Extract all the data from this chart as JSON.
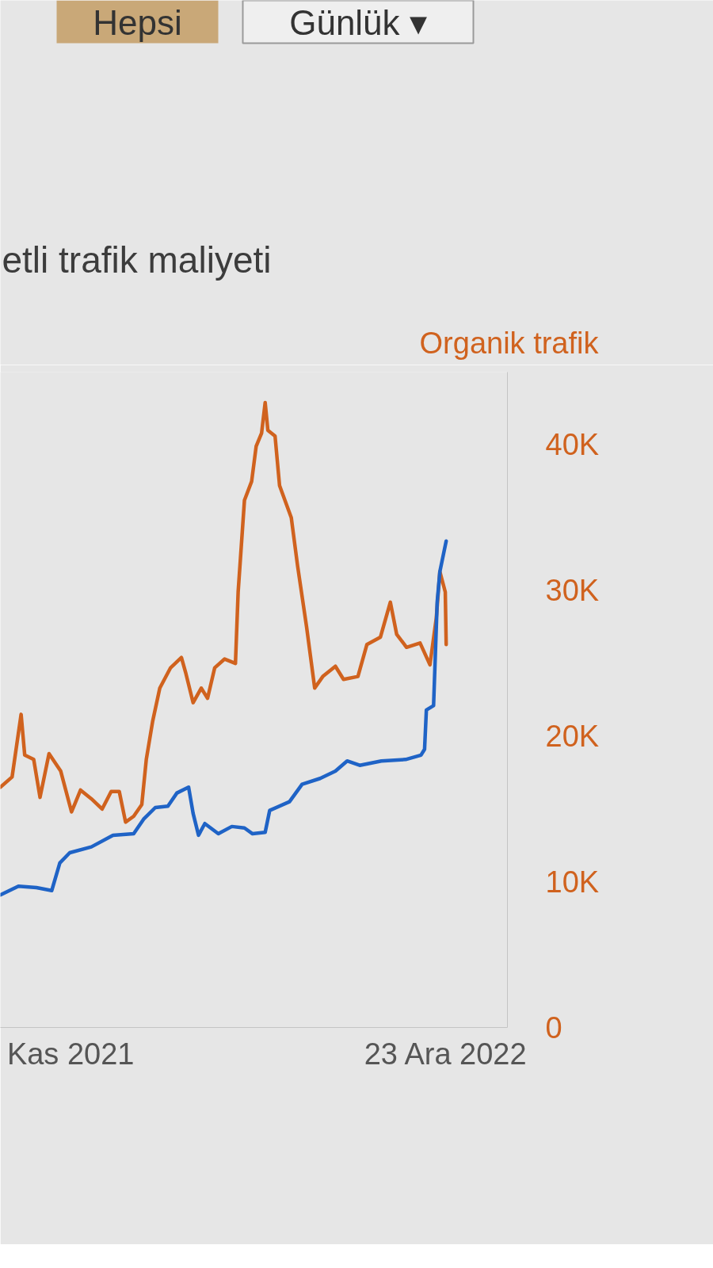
{
  "chart_data": {
    "type": "line",
    "title": "etli trafik maliyeti",
    "ylabel": "Organik trafik",
    "annotations": [
      "Hepsi",
      "Günlük ▾"
    ],
    "xlim": [
      "2021-08-15",
      "2023-03-01"
    ],
    "xticks": [
      {
        "value": "2021-11",
        "label": "Kas 2021"
      },
      {
        "value": "2022-12-23",
        "label": "23 Ara 2022"
      }
    ],
    "ylim": [
      0,
      45000
    ],
    "yticks": [
      0,
      {
        "value": 10000,
        "label": "10K"
      },
      {
        "value": 20000,
        "label": "20K"
      },
      {
        "value": 30000,
        "label": "30K"
      },
      {
        "value": 40000,
        "label": "40K"
      }
    ],
    "grid": false,
    "line_style": "solid",
    "series": [
      {
        "color": "#d0621e",
        "x": [
          "2021-08-15",
          "2021-08-28",
          "2021-09-07",
          "2021-09-11",
          "2021-09-21",
          "2021-09-28",
          "2021-10-08",
          "2021-10-21",
          "2021-11-02",
          "2021-11-12",
          "2021-11-24",
          "2021-12-06",
          "2021-12-16",
          "2021-12-25",
          "2022-01-01",
          "2022-01-10",
          "2022-01-19",
          "2022-01-24",
          "2022-01-31",
          "2022-02-08",
          "2022-02-20",
          "2022-03-04",
          "2022-03-09",
          "2022-03-17",
          "2022-03-26",
          "2022-04-02",
          "2022-04-10",
          "2022-04-21",
          "2022-05-03",
          "2022-05-06",
          "2022-05-13",
          "2022-05-21",
          "2022-05-26",
          "2022-06-01",
          "2022-06-05",
          "2022-06-08",
          "2022-06-16",
          "2022-06-21",
          "2022-07-04",
          "2022-07-11",
          "2022-07-21",
          "2022-07-30",
          "2022-08-08",
          "2022-08-22",
          "2022-08-31",
          "2022-09-16",
          "2022-09-26",
          "2022-10-11",
          "2022-10-22",
          "2022-10-29",
          "2022-11-09",
          "2022-11-24",
          "2022-12-05",
          "2022-12-12",
          "2022-12-16",
          "2022-12-22",
          "2022-12-23"
        ],
        "values": [
          16500,
          17200,
          21500,
          18700,
          18400,
          15800,
          18800,
          17600,
          14800,
          16300,
          15700,
          15000,
          16200,
          16200,
          14100,
          14500,
          15300,
          18400,
          21000,
          23300,
          24700,
          25400,
          24300,
          22300,
          23300,
          22600,
          24700,
          25300,
          25000,
          29900,
          36200,
          37500,
          39900,
          40800,
          42900,
          41000,
          40600,
          37200,
          35000,
          31700,
          27500,
          23300,
          24100,
          24800,
          23900,
          24100,
          26300,
          26800,
          29200,
          27000,
          26100,
          26400,
          24900,
          28100,
          31300,
          29900,
          26300
        ]
      },
      {
        "color": "#1f63c6",
        "x": [
          "2021-08-15",
          "2021-09-04",
          "2021-09-24",
          "2021-10-11",
          "2021-10-20",
          "2021-10-31",
          "2021-11-24",
          "2021-12-18",
          "2022-01-10",
          "2022-01-21",
          "2022-02-03",
          "2022-02-17",
          "2022-02-27",
          "2022-03-12",
          "2022-03-17",
          "2022-03-23",
          "2022-03-30",
          "2022-04-14",
          "2022-04-29",
          "2022-05-13",
          "2022-05-22",
          "2022-06-05",
          "2022-06-10",
          "2022-07-02",
          "2022-07-16",
          "2022-08-05",
          "2022-08-22",
          "2022-09-04",
          "2022-09-18",
          "2022-10-12",
          "2022-11-08",
          "2022-11-25",
          "2022-11-29",
          "2022-12-01",
          "2022-12-09",
          "2022-12-13",
          "2022-12-16",
          "2022-12-23"
        ],
        "values": [
          9100,
          9700,
          9600,
          9400,
          11300,
          12000,
          12400,
          13200,
          13300,
          14300,
          15100,
          15200,
          16100,
          16500,
          14700,
          13200,
          14000,
          13300,
          13800,
          13700,
          13300,
          13400,
          14900,
          15500,
          16700,
          17100,
          17600,
          18300,
          18000,
          18300,
          18400,
          18700,
          19100,
          21800,
          22100,
          29200,
          31300,
          33400
        ]
      }
    ]
  }
}
